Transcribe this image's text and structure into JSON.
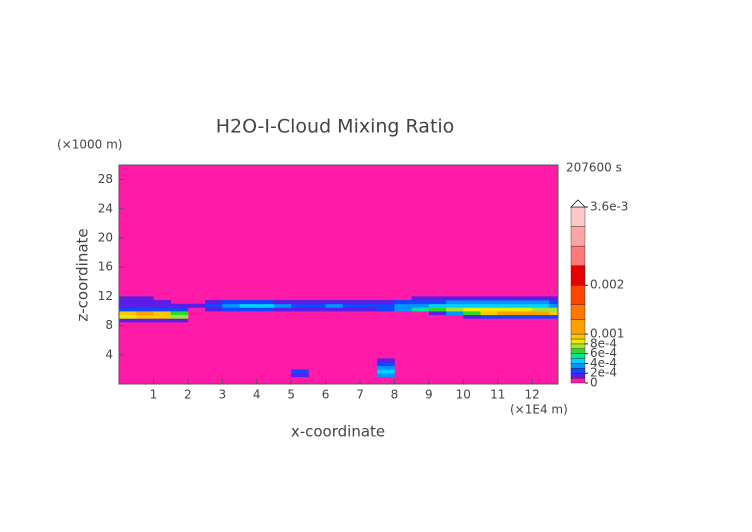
{
  "chart_data": {
    "type": "heatmap",
    "title": "H2O-I-Cloud Mixing Ratio",
    "time_label": "207600 s",
    "xlabel": "x-coordinate",
    "ylabel": "z-coordinate",
    "xlabel_unit": "(×1E4 m)",
    "ylabel_unit": "(×1000 m)",
    "xlim": [
      0,
      12.75
    ],
    "ylim": [
      0,
      30
    ],
    "xticks": [
      1,
      2,
      3,
      4,
      5,
      6,
      7,
      8,
      9,
      10,
      11,
      12
    ],
    "yticks": [
      4,
      8,
      12,
      16,
      20,
      24,
      28
    ],
    "field": {
      "x_edges": [
        0,
        0.5,
        1,
        1.5,
        2,
        2.5,
        3,
        3.5,
        4,
        4.5,
        5,
        5.5,
        6,
        6.5,
        7,
        7.5,
        8,
        8.5,
        9,
        9.5,
        10,
        10.5,
        11,
        11.5,
        12,
        12.5,
        12.75
      ],
      "z_edges": [
        0,
        1,
        1.5,
        2,
        2.5,
        3,
        3.5,
        4,
        8,
        8.5,
        9,
        9.5,
        10,
        10.5,
        11,
        11.5,
        12,
        12.5
      ],
      "values": [
        [
          0,
          0,
          0,
          0,
          0,
          0,
          0,
          0,
          0,
          0,
          0,
          0,
          0,
          0,
          0,
          0,
          0,
          0,
          0,
          0,
          0,
          0,
          0,
          0,
          0,
          0
        ],
        [
          0,
          0,
          0,
          0,
          0,
          0,
          0,
          0,
          0,
          0,
          0.0001,
          0,
          0,
          0,
          0,
          0.0003,
          0,
          0,
          0,
          0,
          0,
          0,
          0,
          0,
          0,
          0
        ],
        [
          0,
          0,
          0,
          0,
          0,
          0,
          0,
          0,
          0,
          0,
          0.0002,
          0,
          0,
          0,
          0,
          0.0004,
          0,
          0,
          0,
          0,
          0,
          0,
          0,
          0,
          0,
          0
        ],
        [
          0,
          0,
          0,
          0,
          0,
          0,
          0,
          0,
          0,
          0,
          0,
          0,
          0,
          0,
          0,
          0.0003,
          0,
          0,
          0,
          0,
          0,
          0,
          0,
          0,
          0,
          0
        ],
        [
          0,
          0,
          0,
          0,
          0,
          0,
          0,
          0,
          0,
          0,
          0,
          0,
          0,
          0,
          0,
          0.0002,
          0,
          0,
          0,
          0,
          0,
          0,
          0,
          0,
          0,
          0
        ],
        [
          0,
          0,
          0,
          0,
          0,
          0,
          0,
          0,
          0,
          0,
          0,
          0,
          0,
          0,
          0,
          0.0001,
          0,
          0,
          0,
          0,
          0,
          0,
          0,
          0,
          0,
          0
        ],
        [
          0,
          0,
          0,
          0,
          0,
          0,
          0,
          0,
          0,
          0,
          0,
          0,
          0,
          0,
          0,
          0,
          0,
          0,
          0,
          0,
          0,
          0,
          0,
          0,
          0,
          0
        ],
        [
          0,
          0,
          0,
          0,
          0,
          0,
          0,
          0,
          0,
          0,
          0,
          0,
          0,
          0,
          0,
          0,
          0,
          0,
          0,
          0,
          0,
          0,
          0,
          0,
          0,
          0
        ],
        [
          0,
          0,
          0,
          0,
          0,
          0,
          0,
          0,
          0,
          0,
          0,
          0,
          0,
          0,
          0,
          0,
          0,
          0,
          0,
          0,
          0,
          0,
          0,
          0,
          0,
          0
        ],
        [
          0.0001,
          0.0001,
          0.0001,
          0.0001,
          0,
          0,
          0,
          0,
          0,
          0,
          0,
          0,
          0,
          0,
          0,
          0,
          0,
          0,
          0,
          0,
          0,
          0,
          0,
          0,
          0,
          0
        ],
        [
          0.0008,
          0.0009,
          0.0009,
          0.0007,
          0,
          0,
          0,
          0,
          0,
          0,
          0,
          0,
          0,
          0,
          0,
          0,
          0,
          0,
          0,
          0,
          0.0001,
          0.0002,
          0.0002,
          0.0002,
          0.0002,
          0.0002
        ],
        [
          0.0009,
          0.001,
          0.0009,
          0.0006,
          0,
          0,
          0,
          0,
          0,
          0,
          0,
          0,
          0,
          0,
          0,
          0,
          0,
          0,
          0.0001,
          0.0003,
          0.0006,
          0.0009,
          0.001,
          0.001,
          0.001,
          0.0009
        ],
        [
          0.0002,
          0.0002,
          0.0002,
          0.0002,
          0,
          0.0001,
          0.0002,
          0.0002,
          0.0002,
          0.0001,
          0.0001,
          0.0001,
          0.0001,
          0.0001,
          0.0001,
          0.0002,
          0.0003,
          0.0005,
          0.0006,
          0.0007,
          0.0008,
          0.0008,
          0.0008,
          0.0008,
          0.0007,
          0.0007
        ],
        [
          0.0001,
          0.0001,
          0.0001,
          0.0001,
          0.0001,
          0.0002,
          0.0003,
          0.0004,
          0.0004,
          0.0003,
          0.0002,
          0.0002,
          0.0003,
          0.0002,
          0.0002,
          0.0002,
          0.0003,
          0.0003,
          0.0004,
          0.0004,
          0.0004,
          0.0004,
          0.0004,
          0.0004,
          0.0004,
          0.0003
        ],
        [
          0.0001,
          0.0001,
          0.0001,
          0,
          0,
          0.0001,
          0.0002,
          0.0002,
          0.0002,
          0.0001,
          0.0001,
          0.0001,
          0.0001,
          0.0001,
          0.0001,
          0.0001,
          0.0002,
          0.0002,
          0.0002,
          0.0003,
          0.0003,
          0.0003,
          0.0003,
          0.0003,
          0.0003,
          0.0002
        ],
        [
          0.0001,
          0.0001,
          0,
          0,
          0,
          0,
          0,
          0,
          0,
          0,
          0,
          0,
          0,
          0,
          0,
          0,
          0,
          0.0001,
          0.0001,
          0.0001,
          0.0001,
          0.0001,
          0.0001,
          0.0001,
          0.0001,
          0.0001
        ],
        [
          0,
          0,
          0,
          0,
          0,
          0,
          0,
          0,
          0,
          0,
          0,
          0,
          0,
          0,
          0,
          0,
          0,
          0,
          0,
          0,
          0,
          0,
          0,
          0,
          0,
          0
        ]
      ]
    },
    "colorbar": {
      "levels": [
        0,
        0.0001,
        0.0002,
        0.0003,
        0.0004,
        0.0005,
        0.0006,
        0.0007,
        0.0008,
        0.0009,
        0.001,
        0.0013,
        0.0016,
        0.002,
        0.0024,
        0.0028,
        0.0032,
        0.0036
      ],
      "colors": [
        "#ff1aa8",
        "#5a1ee6",
        "#1446ff",
        "#0096ff",
        "#00d2ff",
        "#00e6a0",
        "#28dc28",
        "#a0e632",
        "#ecec00",
        "#ffc800",
        "#ffa000",
        "#ff7800",
        "#ff4600",
        "#e60000",
        "#ff7a7a",
        "#ffa4a4",
        "#ffc8c8"
      ],
      "clim": [
        0,
        0.0036
      ],
      "ticks": [
        0,
        {
          "value": 0.0002,
          "label": "2e-4"
        },
        {
          "value": 0.0004,
          "label": "4e-4"
        },
        {
          "value": 0.0006,
          "label": "6e-4"
        },
        {
          "value": 0.0008,
          "label": "8e-4"
        },
        0.001,
        0.002,
        {
          "value": 0.0036,
          "label": "3.6e-3"
        }
      ]
    }
  }
}
